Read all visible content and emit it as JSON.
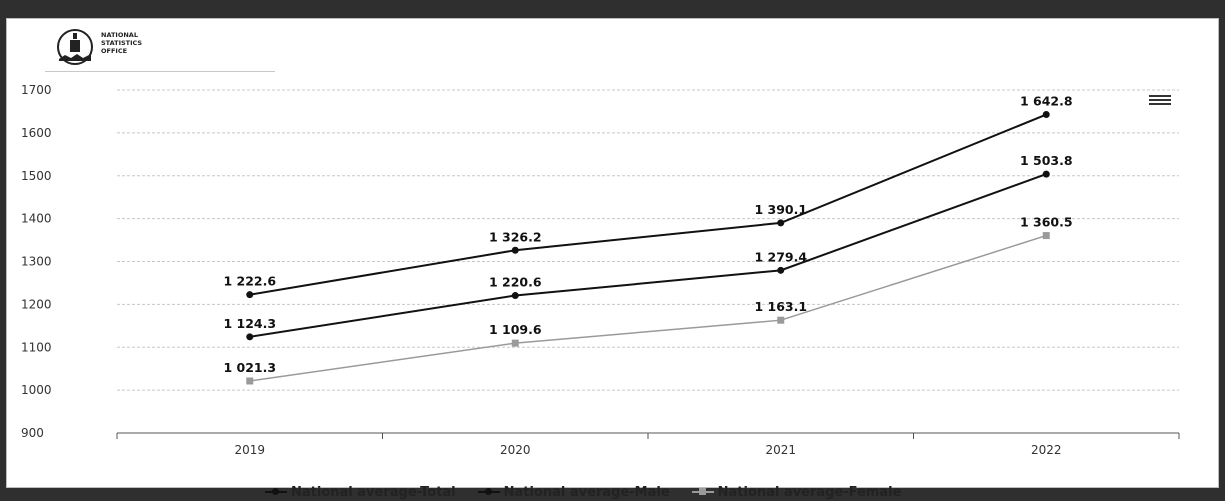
{
  "header": {
    "logo_lines": [
      "NATIONAL",
      "STATISTICS",
      "OFFICE"
    ]
  },
  "chart_data": {
    "type": "line",
    "categories": [
      "2019",
      "2020",
      "2021",
      "2022"
    ],
    "y_ticks": [
      "1700",
      "1600",
      "1500",
      "1400",
      "1300",
      "1200",
      "1100",
      "1000",
      "900"
    ],
    "ylim": [
      900,
      1700
    ],
    "grid": true,
    "legend_position": "bottom",
    "series": [
      {
        "name": "National average-Total",
        "values": [
          1222.6,
          1326.2,
          1390.1,
          1642.8
        ],
        "labels": [
          "1 222.6",
          "1 326.2",
          "1 390.1",
          "1 642.8"
        ],
        "color": "#111111",
        "marker": "circle"
      },
      {
        "name": "National average-Male",
        "values": [
          1124.3,
          1220.6,
          1279.4,
          1503.8
        ],
        "labels": [
          "1 124.3",
          "1 220.6",
          "1 279.4",
          "1 503.8"
        ],
        "color": "#111111",
        "marker": "circle"
      },
      {
        "name": "National average-Female",
        "values": [
          1021.3,
          1109.6,
          1163.1,
          1360.5
        ],
        "labels": [
          "1 021.3",
          "1 109.6",
          "1 163.1",
          "1 360.5"
        ],
        "color": "#9a9a9a",
        "marker": "square"
      }
    ]
  }
}
